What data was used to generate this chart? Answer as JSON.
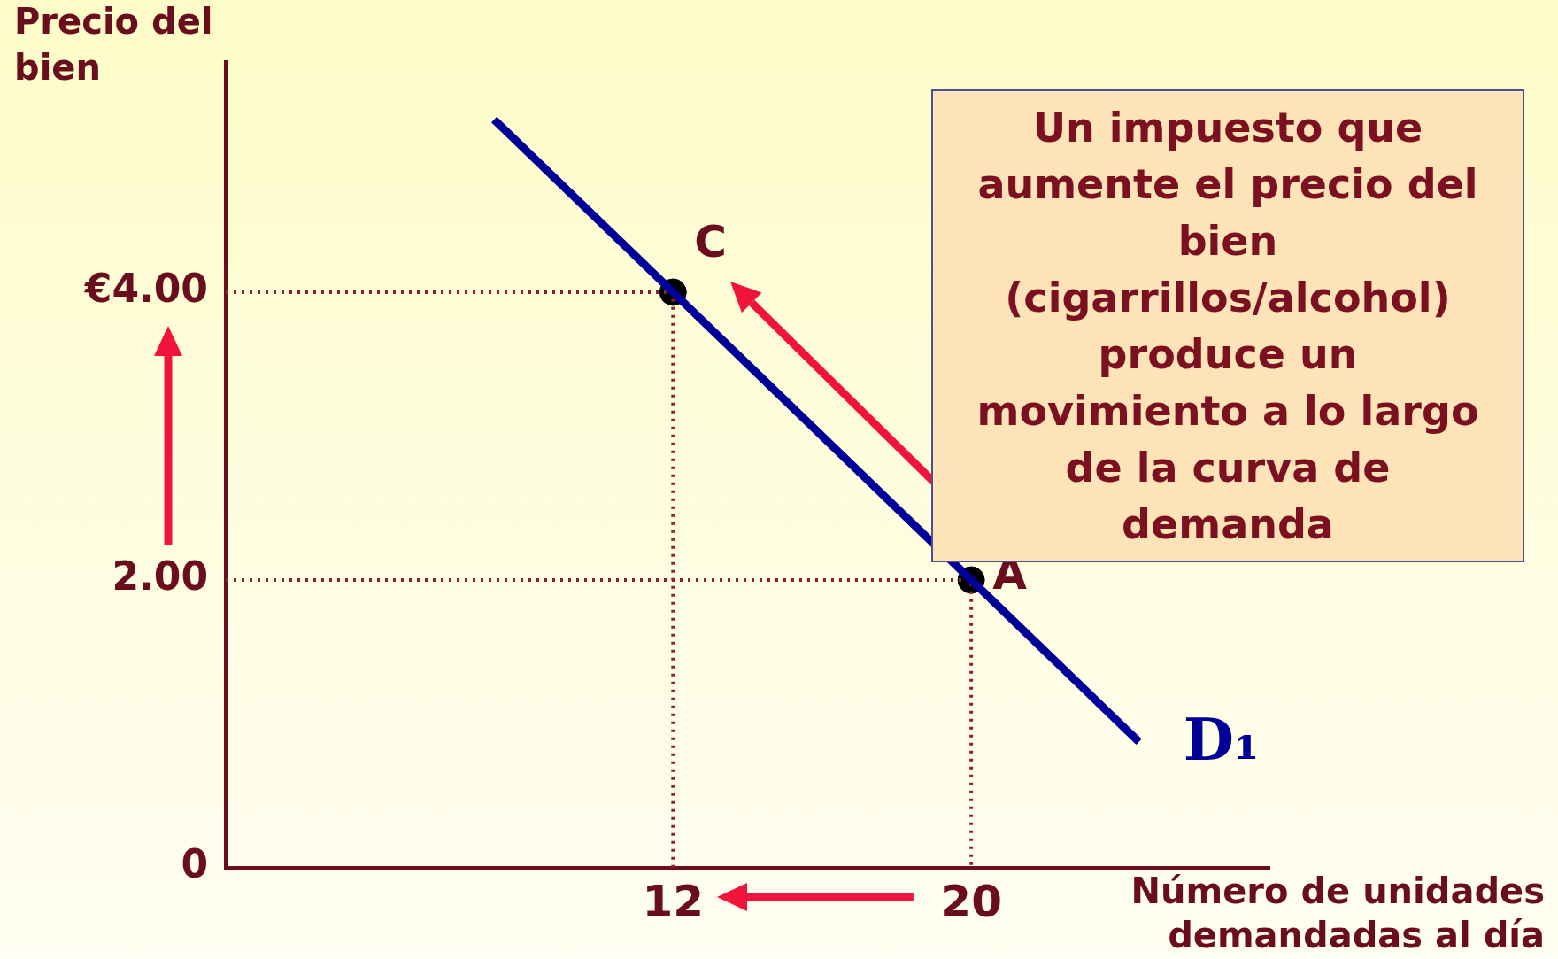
{
  "chart_data": {
    "type": "line",
    "xlabel": "Número de unidades demandadas al día",
    "ylabel": "Precio del bien",
    "xlim": [
      0,
      28
    ],
    "ylim": [
      0,
      5.6
    ],
    "xticks": [
      12,
      20
    ],
    "yticks": [
      {
        "value": 0,
        "label": "0"
      },
      {
        "value": 2,
        "label": "2.00"
      },
      {
        "value": 4,
        "label": "€4.00"
      }
    ],
    "grid": false,
    "legend": false,
    "series": [
      {
        "type": "line",
        "name": "D₁",
        "color": "#000099",
        "x": [
          7.2,
          24.5
        ],
        "values": [
          5.2,
          0.875
        ],
        "line_style": "solid",
        "marker": "none"
      },
      {
        "type": "line",
        "color": "#8b2035",
        "x": [
          0,
          12,
          12
        ],
        "values": [
          4,
          4,
          0
        ],
        "line_style": "dotted",
        "marker": "none"
      },
      {
        "type": "line",
        "color": "#8b2035",
        "x": [
          0,
          20,
          20
        ],
        "values": [
          2,
          2,
          0
        ],
        "line_style": "dotted",
        "marker": "none"
      },
      {
        "type": "scatter",
        "color": "#000000",
        "x": [
          12,
          20
        ],
        "values": [
          4,
          2
        ],
        "marker": "circle"
      }
    ],
    "annotations": [
      {
        "text": "C",
        "x": 12,
        "y": 4
      },
      {
        "text": "A",
        "x": 20,
        "y": 2
      },
      "Un impuesto que aumente el precio del bien (cigarrillos/alcohol) produce un movimiento a lo largo de la curva de demanda"
    ]
  }
}
